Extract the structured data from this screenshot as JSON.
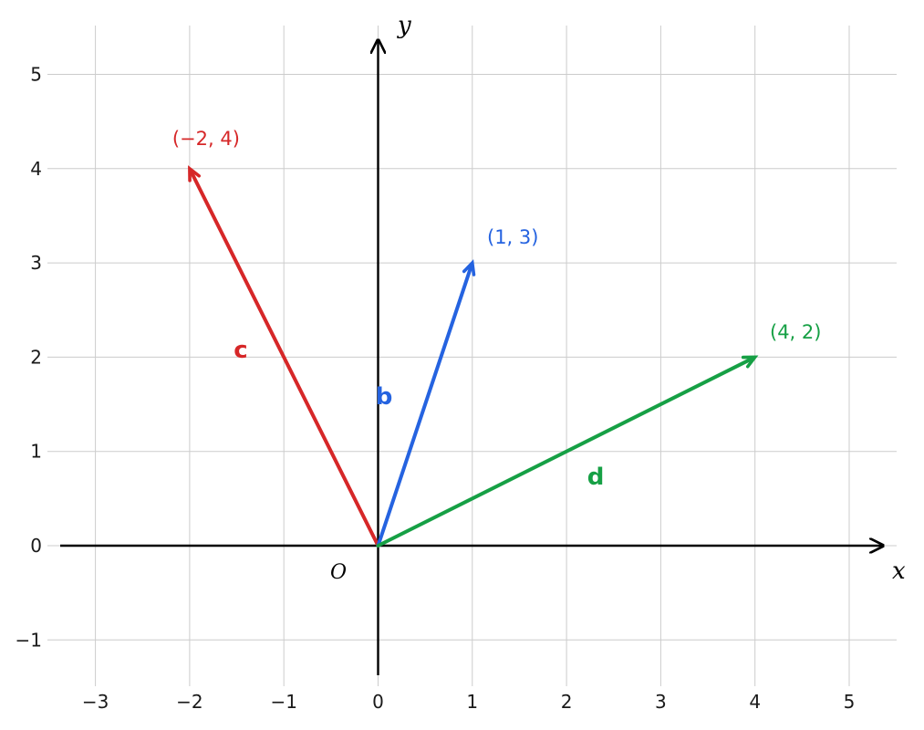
{
  "diagram": {
    "x_axis_label": "x",
    "y_axis_label": "y",
    "origin_label": "O",
    "x_range": [
      -3.4,
      5.5
    ],
    "y_range": [
      -1.4,
      5.5
    ],
    "x_ticks": [
      -3,
      -2,
      -1,
      0,
      1,
      2,
      3,
      4,
      5
    ],
    "x_tick_labels": [
      "−3",
      "−2",
      "−1",
      "0",
      "1",
      "2",
      "3",
      "4",
      "5"
    ],
    "y_ticks": [
      -1,
      0,
      1,
      2,
      3,
      4,
      5
    ],
    "y_tick_labels": [
      "−1",
      "0",
      "1",
      "2",
      "3",
      "4",
      "5"
    ],
    "grid": true,
    "grid_color": "#cccccc",
    "vectors": [
      {
        "name": "c",
        "x": -2,
        "y": 4,
        "coord_label": "(−2, 4)",
        "color": "#d62728"
      },
      {
        "name": "b",
        "x": 1,
        "y": 3,
        "coord_label": "(1, 3)",
        "color": "#2563e0"
      },
      {
        "name": "d",
        "x": 4,
        "y": 2,
        "coord_label": "(4, 2)",
        "color": "#16a045"
      }
    ]
  }
}
